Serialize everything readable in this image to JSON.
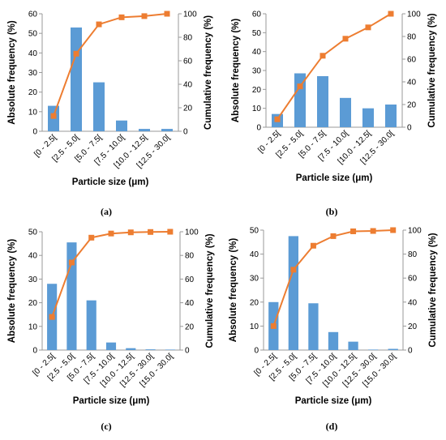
{
  "colors": {
    "bar": "#5b9bd5",
    "line": "#ed7d31",
    "axis": "#999999"
  },
  "chart_data": [
    {
      "label": "(a)",
      "type": "bar+line",
      "categories": [
        "[0 - 2.5[",
        "[2.5 - 5.0[",
        "[5.0 - 7.5[",
        "[7.5 - 10.0[",
        "[10.0 - 12.5[",
        "[12.5 - 30.0["
      ],
      "series": [
        {
          "axis": "left",
          "kind": "bar",
          "values": [
            13,
            53,
            25,
            5.5,
            1.2,
            1.2
          ]
        },
        {
          "axis": "right",
          "kind": "line",
          "values": [
            13,
            66,
            91,
            97,
            98,
            100
          ]
        }
      ],
      "xlabel": "Particle size (μm)",
      "ylabel": "Absolute frequency (%)",
      "ylabel_right": "Cumulative frequency (%)",
      "ylim": [
        0,
        60
      ],
      "yticks": [
        0,
        10,
        20,
        30,
        40,
        50,
        60
      ],
      "ylim_right": [
        0,
        100
      ],
      "yticks_right": [
        0,
        20,
        40,
        60,
        80,
        100
      ]
    },
    {
      "label": "(b)",
      "type": "bar+line",
      "categories": [
        "[0 - 2.5[",
        "[2.5 - 5.0[",
        "[5.0 - 7.5[",
        "[7.5 - 10.0[",
        "[10.0 - 12.5[",
        "[12.5 - 30.0["
      ],
      "series": [
        {
          "axis": "left",
          "kind": "bar",
          "values": [
            7,
            28.5,
            27,
            15.5,
            10,
            12
          ]
        },
        {
          "axis": "right",
          "kind": "line",
          "values": [
            7,
            36,
            63,
            78,
            88,
            100
          ]
        }
      ],
      "xlabel": "Particle size (μm)",
      "ylabel": "Absolute frequency (%)",
      "ylabel_right": "Cumulative frequency (%)",
      "ylim": [
        0,
        60
      ],
      "yticks": [
        0,
        10,
        20,
        30,
        40,
        50,
        60
      ],
      "ylim_right": [
        0,
        100
      ],
      "yticks_right": [
        0,
        20,
        40,
        60,
        80,
        100
      ]
    },
    {
      "label": "(c)",
      "type": "bar+line",
      "categories": [
        "[0 - 2.5[",
        "[2.5 - 5.0[",
        "[5.0 - 7.5[",
        "[7.5 - 10.0[",
        "[10.0 - 12.5[",
        "[12.5 - 30.0[",
        "[15.0 - 30.0["
      ],
      "series": [
        {
          "axis": "left",
          "kind": "bar",
          "values": [
            28,
            45.5,
            21,
            3.2,
            0.8,
            0.3,
            0.2
          ]
        },
        {
          "axis": "right",
          "kind": "line",
          "values": [
            28,
            74,
            95,
            98.5,
            99.5,
            99.8,
            100
          ]
        }
      ],
      "xlabel": "Particle size (μm)",
      "ylabel": "Absolute frequency (%)",
      "ylabel_right": "Cumulative frequency (%)",
      "ylim": [
        0,
        50
      ],
      "yticks": [
        0,
        10,
        20,
        30,
        40,
        50
      ],
      "ylim_right": [
        0,
        100
      ],
      "yticks_right": [
        0,
        20,
        40,
        60,
        80,
        100
      ]
    },
    {
      "label": "(d)",
      "type": "bar+line",
      "categories": [
        "[0 - 2.5[",
        "[2.5 - 5.0[",
        "[5.0 - 7.5[",
        "[7.5 - 10.0[",
        "[10.0 - 12.5[",
        "[12.5 - 30.0[",
        "[15.0 - 30.0["
      ],
      "series": [
        {
          "axis": "left",
          "kind": "bar",
          "values": [
            20,
            47.5,
            19.5,
            7.5,
            3.5,
            0.2,
            0.5
          ]
        },
        {
          "axis": "right",
          "kind": "line",
          "values": [
            20,
            67,
            87,
            95,
            99,
            99.3,
            100
          ]
        }
      ],
      "xlabel": "Particle size (μm)",
      "ylabel": "Absolute frequency (%)",
      "ylabel_right": "Cumulative frequency (%)",
      "ylim": [
        0,
        50
      ],
      "yticks": [
        0,
        10,
        20,
        30,
        40,
        50
      ],
      "ylim_right": [
        0,
        100
      ],
      "yticks_right": [
        0,
        20,
        40,
        60,
        80,
        100
      ]
    }
  ]
}
